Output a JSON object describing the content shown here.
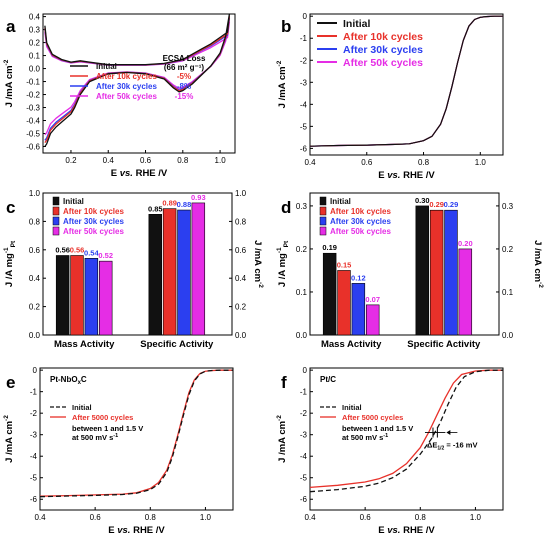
{
  "colors": {
    "initial": "#111111",
    "c10k": "#e8312a",
    "c30k": "#2b3ff0",
    "c50k": "#e52de5"
  },
  "chart_data": [
    {
      "id": "a",
      "panel_label": "a",
      "type": "line",
      "xlabel_parts": [
        "E ",
        "vs.",
        " RHE /V"
      ],
      "ylabel": "J /mA cm",
      "ylabel_sup": "-2",
      "xlim": [
        0.05,
        1.08
      ],
      "ylim": [
        -0.65,
        0.42
      ],
      "xticks": [
        0.2,
        0.4,
        0.6,
        0.8,
        1.0
      ],
      "xtick_labels": [
        "0.2",
        "0.4",
        "0.6",
        "0.8",
        "1.0"
      ],
      "yticks": [
        -0.6,
        -0.5,
        -0.4,
        -0.3,
        -0.2,
        -0.1,
        0.0,
        0.1,
        0.2,
        0.3,
        0.4
      ],
      "ytick_labels": [
        "-0.6",
        "-0.5",
        "-0.4",
        "-0.3",
        "-0.2",
        "-0.1",
        "0.0",
        "0.1",
        "0.2",
        "0.3",
        "0.4"
      ],
      "legend": [
        "Initial",
        "After 10k cycles",
        "After 30k cycles",
        "After 50k cycles"
      ],
      "ecsa_title": "ECSA Loss",
      "ecsa_unit": "(66 m² g⁻¹)",
      "ecsa_values": [
        "-5%",
        "-8%",
        "-15%"
      ],
      "series": [
        {
          "name": "Initial",
          "scale": 1.0
        },
        {
          "name": "After 10k cycles",
          "scale": 0.95
        },
        {
          "name": "After 30k cycles",
          "scale": 0.92
        },
        {
          "name": "After 50k cycles",
          "scale": 0.85
        }
      ],
      "anodic": [
        [
          0.06,
          0.33
        ],
        [
          0.07,
          0.2
        ],
        [
          0.1,
          0.11
        ],
        [
          0.15,
          0.07
        ],
        [
          0.2,
          0.05
        ],
        [
          0.25,
          0.06
        ],
        [
          0.3,
          0.05
        ],
        [
          0.35,
          0.04
        ],
        [
          0.4,
          0.03
        ],
        [
          0.5,
          0.03
        ],
        [
          0.6,
          0.03
        ],
        [
          0.7,
          0.04
        ],
        [
          0.8,
          0.07
        ],
        [
          0.85,
          0.11
        ],
        [
          0.9,
          0.15
        ],
        [
          0.95,
          0.19
        ],
        [
          1.0,
          0.24
        ],
        [
          1.04,
          0.28
        ],
        [
          1.05,
          0.42
        ]
      ],
      "cathodic": [
        [
          1.05,
          0.42
        ],
        [
          1.03,
          0.25
        ],
        [
          1.0,
          0.12
        ],
        [
          0.95,
          0.02
        ],
        [
          0.9,
          -0.05
        ],
        [
          0.85,
          -0.12
        ],
        [
          0.8,
          -0.17
        ],
        [
          0.78,
          -0.18
        ],
        [
          0.75,
          -0.15
        ],
        [
          0.7,
          -0.08
        ],
        [
          0.6,
          -0.04
        ],
        [
          0.5,
          -0.03
        ],
        [
          0.4,
          -0.04
        ],
        [
          0.3,
          -0.1
        ],
        [
          0.25,
          -0.2
        ],
        [
          0.22,
          -0.3
        ],
        [
          0.2,
          -0.35
        ],
        [
          0.16,
          -0.4
        ],
        [
          0.12,
          -0.45
        ],
        [
          0.09,
          -0.5
        ],
        [
          0.07,
          -0.58
        ],
        [
          0.06,
          -0.6
        ]
      ]
    },
    {
      "id": "b",
      "panel_label": "b",
      "type": "line",
      "xlabel_parts": [
        "E ",
        "vs.",
        " RHE /V"
      ],
      "ylabel": "J /mA cm",
      "ylabel_sup": "-2",
      "xlim": [
        0.4,
        1.08
      ],
      "ylim": [
        -6.3,
        0.1
      ],
      "xticks": [
        0.4,
        0.6,
        0.8,
        1.0
      ],
      "xtick_labels": [
        "0.4",
        "0.6",
        "0.8",
        "1.0"
      ],
      "yticks": [
        -6,
        -5,
        -4,
        -3,
        -2,
        -1,
        0
      ],
      "ytick_labels": [
        "-6",
        "-5",
        "-4",
        "-3",
        "-2",
        "-1",
        "0"
      ],
      "legend": [
        "Initial",
        "After 10k cycles",
        "After 30k cycles",
        "After 50k cycles"
      ],
      "series": [
        {
          "name": "Initial",
          "x": [
            0.4,
            0.5,
            0.6,
            0.7,
            0.75,
            0.8,
            0.83,
            0.86,
            0.88,
            0.9,
            0.92,
            0.94,
            0.96,
            0.98,
            1.0,
            1.02,
            1.05,
            1.08
          ],
          "y": [
            -5.9,
            -5.87,
            -5.85,
            -5.82,
            -5.79,
            -5.65,
            -5.45,
            -4.9,
            -4.2,
            -3.2,
            -2.1,
            -1.1,
            -0.45,
            -0.15,
            -0.05,
            -0.02,
            0,
            0
          ]
        }
      ]
    },
    {
      "id": "c",
      "panel_label": "c",
      "type": "bar",
      "ylabel": "J /A mg",
      "ylabel_sup": "-1",
      "ylabel_sub": "Pt",
      "ylabel_right": "J /mA cm",
      "ylabel_right_sup": "-2",
      "categories": [
        "Mass Activity",
        "Specific Activity"
      ],
      "ylim": [
        0,
        1.0
      ],
      "yticks": [
        0.0,
        0.2,
        0.4,
        0.6,
        0.8,
        1.0
      ],
      "ytick_labels": [
        "0.0",
        "0.2",
        "0.4",
        "0.6",
        "0.8",
        "1.0"
      ],
      "ytick_labels_right": [
        "0.0",
        "0.2",
        "0.4",
        "0.6",
        "0.8",
        "1.0"
      ],
      "legend": [
        "Initial",
        "After 10k cycles",
        "After 30k cycles",
        "After 50k cycles"
      ],
      "series": [
        {
          "name": "Initial",
          "values": [
            0.56,
            0.85
          ],
          "labels": [
            "0.56",
            "0.85"
          ]
        },
        {
          "name": "After 10k cycles",
          "values": [
            0.56,
            0.89
          ],
          "labels": [
            "0.56",
            "0.89"
          ]
        },
        {
          "name": "After 30k cycles",
          "values": [
            0.54,
            0.88
          ],
          "labels": [
            "0.54",
            "0.88"
          ]
        },
        {
          "name": "After 50k cycles",
          "values": [
            0.52,
            0.93
          ],
          "labels": [
            "0.52",
            "0.93"
          ]
        }
      ]
    },
    {
      "id": "d",
      "panel_label": "d",
      "type": "bar",
      "ylabel": "J /A mg",
      "ylabel_sup": "-1",
      "ylabel_sub": "Pt",
      "ylabel_right": "J /mA cm",
      "ylabel_right_sup": "-2",
      "categories": [
        "Mass Activity",
        "Specific Activity"
      ],
      "ylim": [
        0,
        0.33
      ],
      "yticks": [
        0.0,
        0.1,
        0.2,
        0.3
      ],
      "ytick_labels": [
        "0.0",
        "0.1",
        "0.2",
        "0.3"
      ],
      "ytick_labels_right": [
        "0.0",
        "0.1",
        "0.2",
        "0.3"
      ],
      "legend": [
        "Initial",
        "After 10k cycles",
        "After 30k cycles",
        "After 50k cycles"
      ],
      "series": [
        {
          "name": "Initial",
          "values": [
            0.19,
            0.3
          ],
          "labels": [
            "0.19",
            "0.30"
          ]
        },
        {
          "name": "After 10k cycles",
          "values": [
            0.15,
            0.29
          ],
          "labels": [
            "0.15",
            "0.29"
          ]
        },
        {
          "name": "After 30k cycles",
          "values": [
            0.12,
            0.29
          ],
          "labels": [
            "0.12",
            "0.29"
          ]
        },
        {
          "name": "After 50k cycles",
          "values": [
            0.07,
            0.2
          ],
          "labels": [
            "0.07",
            "0.20"
          ]
        }
      ]
    },
    {
      "id": "e",
      "panel_label": "e",
      "type": "line",
      "title_main": "Pt-NbO",
      "title_sub": "x",
      "title_end": "C",
      "xlabel_parts": [
        "E ",
        "vs.",
        " RHE /V"
      ],
      "ylabel": "J /mA cm",
      "ylabel_sup": "-2",
      "xlim": [
        0.4,
        1.1
      ],
      "ylim": [
        -6.5,
        0.1
      ],
      "xticks": [
        0.4,
        0.6,
        0.8,
        1.0
      ],
      "xtick_labels": [
        "0.4",
        "0.6",
        "0.8",
        "1.0"
      ],
      "yticks": [
        -6,
        -5,
        -4,
        -3,
        -2,
        -1,
        0
      ],
      "ytick_labels": [
        "-6",
        "-5",
        "-4",
        "-3",
        "-2",
        "-1",
        "0"
      ],
      "legend": [
        "Initial",
        "After 5000 cycles"
      ],
      "condition_lines": [
        "between 1 and 1.5 V",
        "at 500 mV s"
      ],
      "condition_sup": "-1",
      "series": [
        {
          "name": "Initial",
          "style": "dashed",
          "x": [
            0.4,
            0.5,
            0.6,
            0.7,
            0.75,
            0.8,
            0.83,
            0.86,
            0.88,
            0.9,
            0.92,
            0.94,
            0.96,
            0.98,
            1.0,
            1.02,
            1.05,
            1.1
          ],
          "y": [
            -5.88,
            -5.85,
            -5.82,
            -5.78,
            -5.72,
            -5.55,
            -5.3,
            -4.75,
            -4.05,
            -3.1,
            -2.1,
            -1.15,
            -0.5,
            -0.18,
            -0.05,
            -0.02,
            0,
            0
          ]
        },
        {
          "name": "After 5000 cycles",
          "style": "solid",
          "x": [
            0.4,
            0.5,
            0.6,
            0.7,
            0.75,
            0.8,
            0.83,
            0.86,
            0.88,
            0.9,
            0.92,
            0.94,
            0.96,
            0.98,
            1.0,
            1.02,
            1.05,
            1.1
          ],
          "y": [
            -5.86,
            -5.83,
            -5.8,
            -5.76,
            -5.7,
            -5.5,
            -5.22,
            -4.65,
            -3.95,
            -3.0,
            -2.0,
            -1.05,
            -0.45,
            -0.16,
            -0.05,
            -0.02,
            0,
            0
          ]
        }
      ]
    },
    {
      "id": "f",
      "panel_label": "f",
      "type": "line",
      "title_main": "Pt/C",
      "xlabel_parts": [
        "E ",
        "vs.",
        " RHE /V"
      ],
      "ylabel": "J /mA cm",
      "ylabel_sup": "-2",
      "xlim": [
        0.4,
        1.1
      ],
      "ylim": [
        -6.5,
        0.1
      ],
      "xticks": [
        0.4,
        0.6,
        0.8,
        1.0
      ],
      "xtick_labels": [
        "0.4",
        "0.6",
        "0.8",
        "1.0"
      ],
      "yticks": [
        -6,
        -5,
        -4,
        -3,
        -2,
        -1,
        0
      ],
      "ytick_labels": [
        "-6",
        "-5",
        "-4",
        "-3",
        "-2",
        "-1",
        "0"
      ],
      "legend": [
        "Initial",
        "After 5000 cycles"
      ],
      "condition_lines": [
        "between 1 and 1.5 V",
        "at 500 mV s"
      ],
      "condition_sup": "-1",
      "delta_label": "ΔE",
      "delta_sub": "1/2",
      "delta_value": "= -16 mV",
      "series": [
        {
          "name": "Initial",
          "style": "dashed",
          "x": [
            0.4,
            0.5,
            0.6,
            0.65,
            0.7,
            0.75,
            0.8,
            0.84,
            0.87,
            0.9,
            0.93,
            0.96,
            1.0,
            1.05,
            1.1
          ],
          "y": [
            -5.65,
            -5.55,
            -5.4,
            -5.25,
            -5.0,
            -4.6,
            -3.9,
            -3.2,
            -2.5,
            -1.6,
            -0.8,
            -0.3,
            -0.07,
            0,
            0
          ]
        },
        {
          "name": "After 5000 cycles",
          "style": "solid",
          "x": [
            0.4,
            0.5,
            0.6,
            0.65,
            0.7,
            0.75,
            0.8,
            0.83,
            0.86,
            0.89,
            0.92,
            0.95,
            1.0,
            1.05,
            1.1
          ],
          "y": [
            -5.45,
            -5.35,
            -5.2,
            -5.05,
            -4.8,
            -4.35,
            -3.6,
            -2.9,
            -2.1,
            -1.3,
            -0.6,
            -0.2,
            -0.04,
            0,
            0
          ]
        }
      ]
    }
  ]
}
